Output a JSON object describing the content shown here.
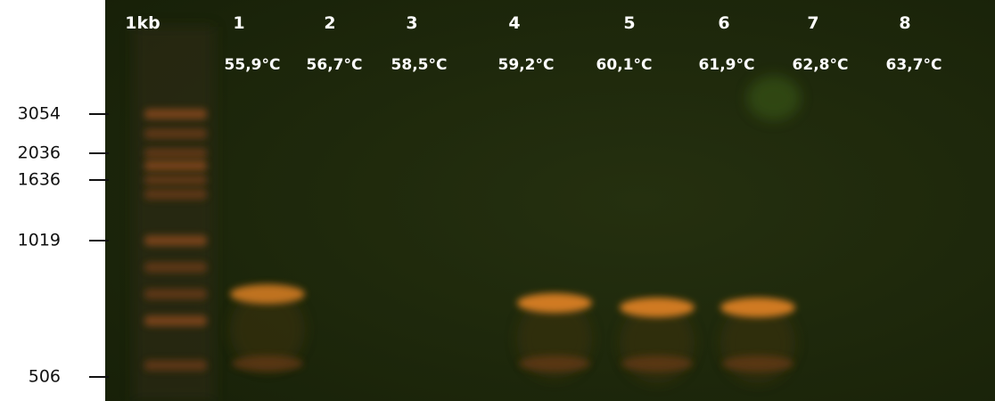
{
  "ladder": {
    "label": "1kb"
  },
  "lanes": [
    {
      "number": "1",
      "temperature": "55,9°C"
    },
    {
      "number": "2",
      "temperature": "56,7°C"
    },
    {
      "number": "3",
      "temperature": "58,5°C"
    },
    {
      "number": "4",
      "temperature": "59,2°C"
    },
    {
      "number": "5",
      "temperature": "60,1°C"
    },
    {
      "number": "6",
      "temperature": "61,9°C"
    },
    {
      "number": "7",
      "temperature": "62,8°C"
    },
    {
      "number": "8",
      "temperature": "63,7°C"
    }
  ],
  "markers": [
    3054,
    2036,
    1636,
    1019,
    506
  ]
}
